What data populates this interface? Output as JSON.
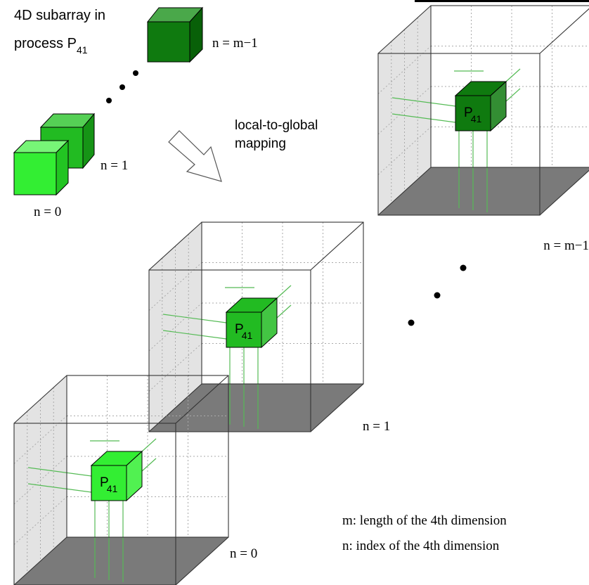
{
  "local_label": {
    "line1": "4D subarray in",
    "line2": "process P",
    "sub": "41"
  },
  "mapping_label": {
    "line1": "local-to-global",
    "line2": "mapping"
  },
  "local_cubes": [
    {
      "n_label": "n = 0",
      "color": "#33ee33"
    },
    {
      "n_label": "n = 1",
      "color": "#22bb22"
    },
    {
      "n_label": "n = m−1",
      "color": "#0f7a0f"
    }
  ],
  "global_blocks": [
    {
      "n_label": "n = 0",
      "color": "#33ee33"
    },
    {
      "n_label": "n = 1",
      "color": "#22bb22"
    },
    {
      "n_label": "n = m−1",
      "color": "#0f7a0f"
    }
  ],
  "block_label": {
    "main": "P",
    "sub": "41"
  },
  "legend": {
    "m": "m: length of the 4th dimension",
    "n": "n:   index of the 4th dimension"
  }
}
